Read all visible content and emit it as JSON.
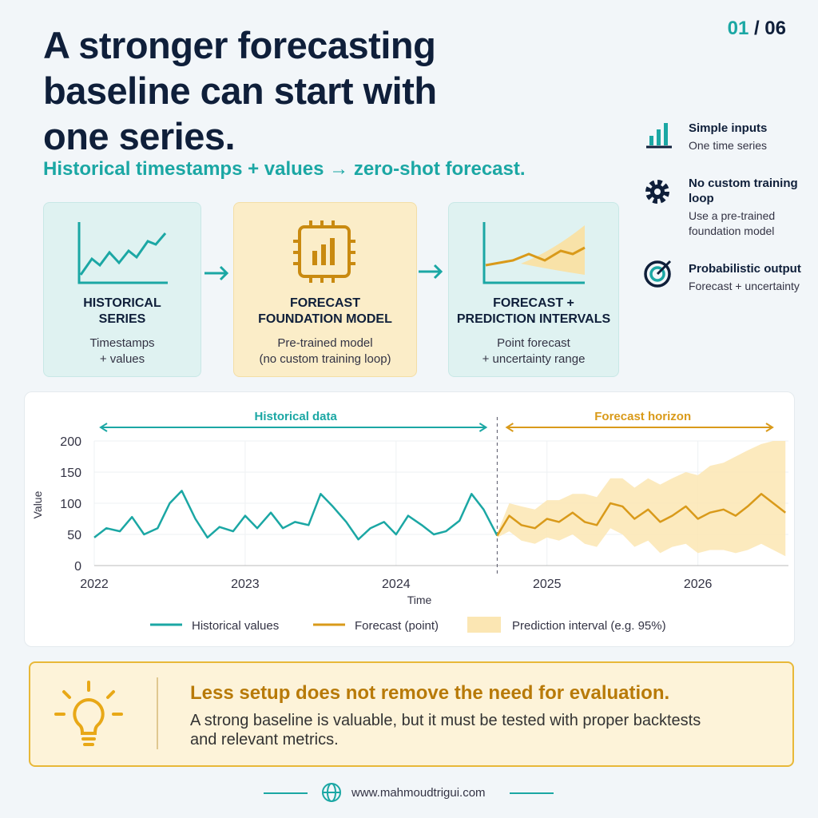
{
  "header": {
    "title_lines": [
      "A stronger forecasting",
      "baseline can start with",
      "one series."
    ],
    "subtitle": "Historical timestamps + values → zero-shot forecast.",
    "page_current": "01",
    "page_total": "/ 06"
  },
  "cards": [
    {
      "title_lines": [
        "HISTORICAL",
        "SERIES"
      ],
      "text_lines": [
        "Timestamps",
        "+ values"
      ]
    },
    {
      "title_lines": [
        "FORECAST",
        "FOUNDATION MODEL"
      ],
      "text_lines": [
        "Pre-trained model",
        "(no custom training loop)"
      ]
    },
    {
      "title_lines": [
        "FORECAST +",
        "PREDICTION INTERVALS"
      ],
      "text_lines": [
        "Point forecast",
        "+ uncertainty range"
      ]
    }
  ],
  "sidebar": [
    {
      "title": "Simple inputs",
      "text": "One time series"
    },
    {
      "title": "No custom training loop",
      "text": "Use a pre-trained foundation model"
    },
    {
      "title": "Probabilistic output",
      "text": "Forecast + uncertainty"
    }
  ],
  "chart_data": {
    "type": "line",
    "x_label": "Time",
    "y_label": "Value",
    "xlim": [
      2022,
      2026.6
    ],
    "xticks": [
      2022,
      2023,
      2024,
      2025,
      2026
    ],
    "ylim": [
      0,
      200
    ],
    "yticks": [
      0,
      50,
      100,
      150,
      200
    ],
    "annotations": {
      "split_x": 2024.67,
      "left": "Historical data",
      "right": "Forecast horizon"
    },
    "series": [
      {
        "name": "Historical values",
        "color": "#1ba7a4",
        "x": [
          2022,
          2022.08,
          2022.17,
          2022.25,
          2022.33,
          2022.42,
          2022.5,
          2022.58,
          2022.67,
          2022.75,
          2022.83,
          2022.92,
          2023,
          2023.08,
          2023.17,
          2023.25,
          2023.33,
          2023.42,
          2023.5,
          2023.58,
          2023.67,
          2023.75,
          2023.83,
          2023.92,
          2024,
          2024.08,
          2024.17,
          2024.25,
          2024.33,
          2024.42,
          2024.5,
          2024.58,
          2024.67
        ],
        "values": [
          45,
          60,
          55,
          78,
          50,
          60,
          100,
          120,
          75,
          45,
          62,
          55,
          80,
          60,
          85,
          60,
          70,
          65,
          115,
          95,
          70,
          42,
          60,
          70,
          50,
          80,
          65,
          50,
          55,
          72,
          115,
          90,
          48
        ]
      },
      {
        "name": "Forecast (point)",
        "color": "#d99a1a",
        "x": [
          2024.67,
          2024.75,
          2024.83,
          2024.92,
          2025,
          2025.08,
          2025.17,
          2025.25,
          2025.33,
          2025.42,
          2025.5,
          2025.58,
          2025.67,
          2025.75,
          2025.83,
          2025.92,
          2026,
          2026.08,
          2026.17,
          2026.25,
          2026.33,
          2026.42,
          2026.5,
          2026.58
        ],
        "values": [
          48,
          80,
          65,
          60,
          75,
          70,
          85,
          70,
          65,
          100,
          95,
          75,
          90,
          70,
          80,
          95,
          75,
          85,
          90,
          80,
          95,
          115,
          100,
          85
        ]
      },
      {
        "name": "Prediction interval (e.g. 95%)",
        "color": "#fbe6b3",
        "x": [
          2024.67,
          2024.75,
          2024.83,
          2024.92,
          2025,
          2025.08,
          2025.17,
          2025.25,
          2025.33,
          2025.42,
          2025.5,
          2025.58,
          2025.67,
          2025.75,
          2025.83,
          2025.92,
          2026,
          2026.08,
          2026.17,
          2026.25,
          2026.33,
          2026.42,
          2026.5,
          2026.58
        ],
        "lower": [
          45,
          55,
          40,
          35,
          45,
          40,
          50,
          35,
          30,
          60,
          50,
          30,
          40,
          20,
          30,
          35,
          20,
          25,
          25,
          20,
          25,
          35,
          25,
          15
        ],
        "upper": [
          52,
          100,
          95,
          90,
          105,
          105,
          115,
          115,
          110,
          140,
          140,
          125,
          140,
          130,
          140,
          150,
          145,
          160,
          165,
          175,
          185,
          195,
          200,
          200
        ]
      }
    ]
  },
  "callout": {
    "title": "Less setup does not remove the need for evaluation.",
    "text": "A strong baseline is valuable, but it must be tested with proper backtests and relevant metrics."
  },
  "footer": {
    "url": "www.mahmoudtrigui.com"
  }
}
